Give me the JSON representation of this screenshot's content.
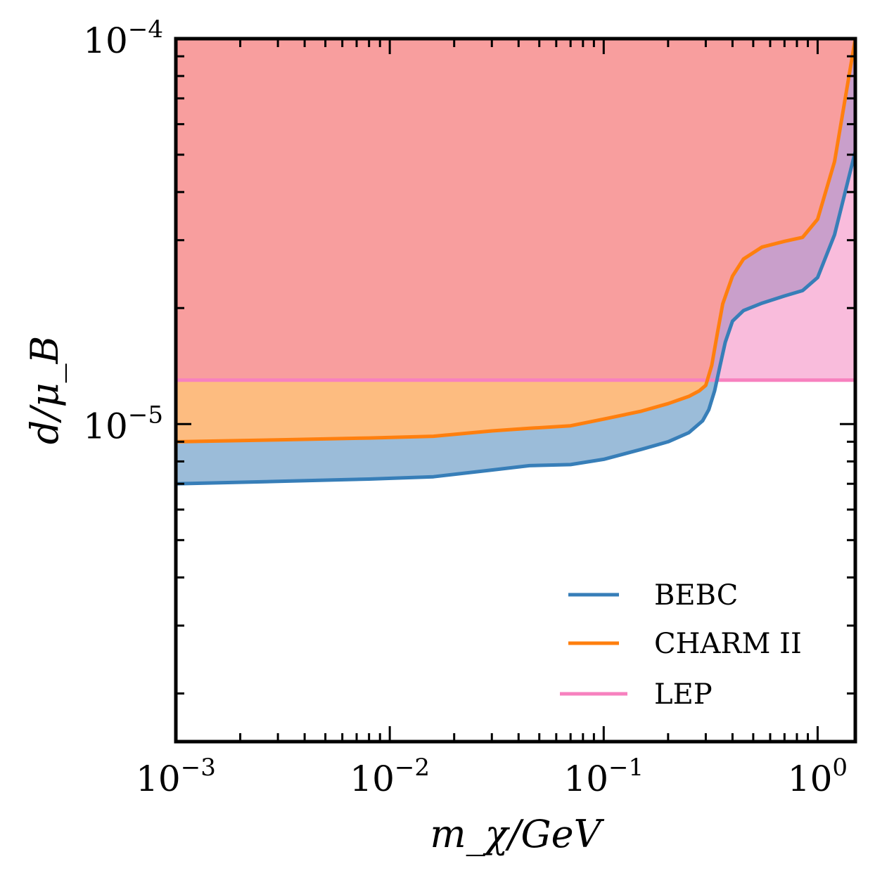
{
  "chart_data": {
    "type": "area",
    "title": "",
    "xlabel": "m_χ/GeV",
    "ylabel": "d/μ_B",
    "xscale": "log",
    "yscale": "log",
    "xlim": [
      0.001,
      1.5
    ],
    "ylim": [
      1.5e-06,
      0.0001
    ],
    "x_ticks": [
      {
        "base": "10",
        "exp": "−3",
        "value": 0.001
      },
      {
        "base": "10",
        "exp": "−2",
        "value": 0.01
      },
      {
        "base": "10",
        "exp": "−1",
        "value": 0.1
      },
      {
        "base": "10",
        "exp": "0",
        "value": 1
      }
    ],
    "y_ticks": [
      {
        "base": "10",
        "exp": "−5",
        "value": 1e-05
      },
      {
        "base": "10",
        "exp": "−4",
        "value": 0.0001
      }
    ],
    "series": [
      {
        "name": "BEBC",
        "color": "#377eb8",
        "fill": "#9bbcd9",
        "x": [
          0.001,
          0.003,
          0.008,
          0.016,
          0.03,
          0.045,
          0.07,
          0.1,
          0.15,
          0.2,
          0.25,
          0.29,
          0.31,
          0.33,
          0.35,
          0.37,
          0.4,
          0.45,
          0.55,
          0.7,
          0.85,
          1.0,
          1.2,
          1.5
        ],
        "y": [
          7e-06,
          7.1e-06,
          7.2e-06,
          7.3e-06,
          7.6e-06,
          7.8e-06,
          7.85e-06,
          8.1e-06,
          8.6e-06,
          9e-06,
          9.5e-06,
          1.02e-05,
          1.09e-05,
          1.22e-05,
          1.42e-05,
          1.63e-05,
          1.85e-05,
          1.97e-05,
          2.06e-05,
          2.15e-05,
          2.22e-05,
          2.4e-05,
          3.1e-05,
          5.1e-05
        ]
      },
      {
        "name": "CHARM II",
        "color": "#ff7f0e",
        "fill": "#fdbc80",
        "x": [
          0.001,
          0.003,
          0.008,
          0.016,
          0.03,
          0.045,
          0.07,
          0.1,
          0.15,
          0.2,
          0.25,
          0.28,
          0.3,
          0.32,
          0.34,
          0.36,
          0.4,
          0.45,
          0.55,
          0.7,
          0.85,
          1.0,
          1.2,
          1.5
        ],
        "y": [
          9e-06,
          9.1e-06,
          9.2e-06,
          9.3e-06,
          9.6e-06,
          9.75e-06,
          9.9e-06,
          1.03e-05,
          1.08e-05,
          1.13e-05,
          1.18e-05,
          1.22e-05,
          1.26e-05,
          1.42e-05,
          1.72e-05,
          2.05e-05,
          2.42e-05,
          2.68e-05,
          2.88e-05,
          2.98e-05,
          3.05e-05,
          3.4e-05,
          4.8e-05,
          0.0001
        ]
      },
      {
        "name": "LEP",
        "color": "#f781bf",
        "fill": "#f9bcdc",
        "x": [
          0.001,
          1.5
        ],
        "y": [
          1.3e-05,
          1.3e-05
        ]
      }
    ],
    "legend": {
      "position": "bottom-right",
      "entries": [
        "BEBC",
        "CHARM II",
        "LEP"
      ]
    },
    "overlap_fill": "#f89e9e",
    "overlap_purple_fill": "#c99fcb"
  }
}
